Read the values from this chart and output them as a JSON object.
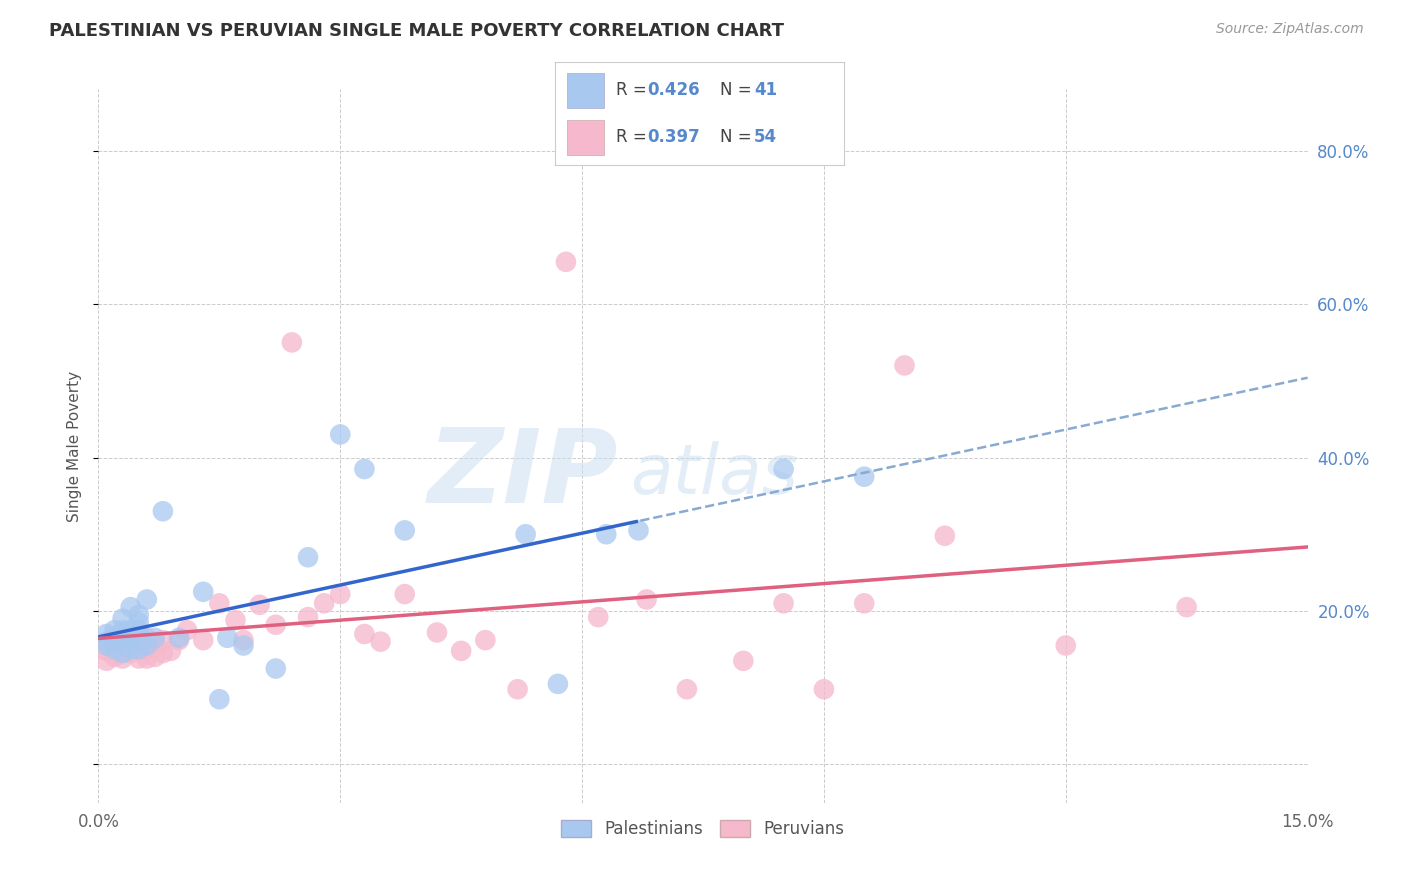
{
  "title": "PALESTINIAN VS PERUVIAN SINGLE MALE POVERTY CORRELATION CHART",
  "source": "Source: ZipAtlas.com",
  "ylabel": "Single Male Poverty",
  "xlim": [
    0.0,
    0.15
  ],
  "ylim": [
    -0.05,
    0.88
  ],
  "palestinian_color": "#a8c8f0",
  "peruvian_color": "#f5b8cc",
  "palestinian_line_color": "#3366cc",
  "peruvian_line_color": "#e06080",
  "dashed_line_color": "#88aad0",
  "R_palestinian": "0.426",
  "N_palestinian": "41",
  "R_peruvian": "0.397",
  "N_peruvian": "54",
  "background_color": "#ffffff",
  "grid_color": "#cccccc",
  "watermark_zip": "ZIP",
  "watermark_atlas": "atlas",
  "tick_color": "#5588cc",
  "palestinian_x": [
    0.001,
    0.001,
    0.001,
    0.002,
    0.002,
    0.002,
    0.002,
    0.003,
    0.003,
    0.003,
    0.003,
    0.003,
    0.004,
    0.004,
    0.004,
    0.004,
    0.005,
    0.005,
    0.005,
    0.005,
    0.005,
    0.006,
    0.006,
    0.007,
    0.008,
    0.01,
    0.013,
    0.015,
    0.016,
    0.018,
    0.022,
    0.026,
    0.03,
    0.033,
    0.038,
    0.053,
    0.057,
    0.063,
    0.067,
    0.085,
    0.095
  ],
  "palestinian_y": [
    0.155,
    0.16,
    0.17,
    0.15,
    0.16,
    0.165,
    0.175,
    0.145,
    0.155,
    0.165,
    0.175,
    0.19,
    0.15,
    0.162,
    0.175,
    0.205,
    0.15,
    0.165,
    0.175,
    0.185,
    0.195,
    0.155,
    0.215,
    0.165,
    0.33,
    0.165,
    0.225,
    0.085,
    0.165,
    0.155,
    0.125,
    0.27,
    0.43,
    0.385,
    0.305,
    0.3,
    0.105,
    0.3,
    0.305,
    0.385,
    0.375
  ],
  "peruvian_x": [
    0.001,
    0.001,
    0.001,
    0.002,
    0.002,
    0.002,
    0.003,
    0.003,
    0.003,
    0.004,
    0.004,
    0.005,
    0.005,
    0.005,
    0.005,
    0.006,
    0.006,
    0.006,
    0.007,
    0.007,
    0.008,
    0.008,
    0.009,
    0.01,
    0.011,
    0.013,
    0.015,
    0.017,
    0.018,
    0.02,
    0.022,
    0.024,
    0.026,
    0.028,
    0.03,
    0.033,
    0.035,
    0.038,
    0.042,
    0.045,
    0.048,
    0.052,
    0.058,
    0.062,
    0.068,
    0.073,
    0.08,
    0.085,
    0.09,
    0.095,
    0.1,
    0.105,
    0.12,
    0.135
  ],
  "peruvian_y": [
    0.135,
    0.148,
    0.158,
    0.14,
    0.152,
    0.16,
    0.138,
    0.15,
    0.162,
    0.145,
    0.158,
    0.138,
    0.15,
    0.16,
    0.172,
    0.138,
    0.15,
    0.165,
    0.14,
    0.158,
    0.145,
    0.162,
    0.148,
    0.162,
    0.175,
    0.162,
    0.21,
    0.188,
    0.162,
    0.208,
    0.182,
    0.55,
    0.192,
    0.21,
    0.222,
    0.17,
    0.16,
    0.222,
    0.172,
    0.148,
    0.162,
    0.098,
    0.655,
    0.192,
    0.215,
    0.098,
    0.135,
    0.21,
    0.098,
    0.21,
    0.52,
    0.298,
    0.155,
    0.205
  ],
  "blue_line_x_end": 0.067,
  "line_x_start": 0.0,
  "line_x_end": 0.15
}
